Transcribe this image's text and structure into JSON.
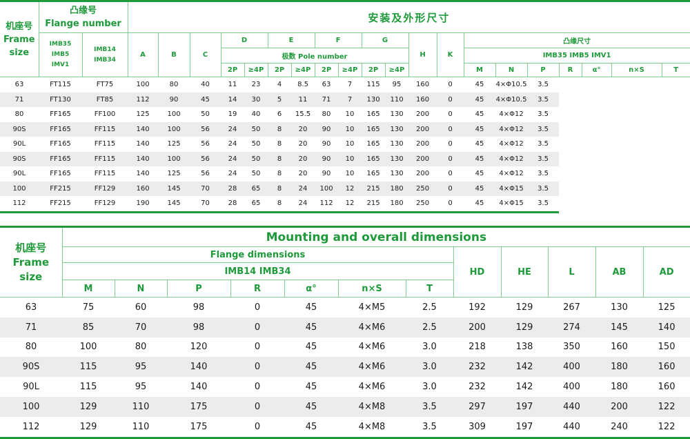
{
  "table1": {
    "frame_size_label": [
      "机座号",
      "Frame",
      "size"
    ],
    "flange_label": [
      "凸缘号",
      "Flange number"
    ],
    "flange_col1": [
      "IMB35",
      "IMB5",
      "IMV1"
    ],
    "flange_col2": [
      "IMB14",
      "IMB34"
    ],
    "title": "安装及外形尺寸",
    "cols_abc": [
      "A",
      "B",
      "C"
    ],
    "d_groups": [
      "D",
      "E",
      "F",
      "G"
    ],
    "pole_label": "极数 Pole number",
    "pole_sub": [
      "2P",
      "≥4P",
      "2P",
      "≥4P",
      "2P",
      "≥4P",
      "2P",
      "≥4P"
    ],
    "cols_hk": [
      "H",
      "K"
    ],
    "flange_dim_label": "凸缘尺寸",
    "flange_dim_sub": "IMB35  IMB5  IMV1",
    "flange_dim_cols": [
      "M",
      "N",
      "P",
      "R",
      "α°",
      "n×S",
      "T"
    ],
    "rows": [
      [
        "63",
        "FT115",
        "FT75",
        "100",
        "80",
        "40",
        "11",
        "23",
        "4",
        "8.5",
        "63",
        "7",
        "115",
        "95",
        "160",
        "0",
        "45",
        "4×Φ10.5",
        "3.5"
      ],
      [
        "71",
        "FT130",
        "FT85",
        "112",
        "90",
        "45",
        "14",
        "30",
        "5",
        "11",
        "71",
        "7",
        "130",
        "110",
        "160",
        "0",
        "45",
        "4×Φ10.5",
        "3.5"
      ],
      [
        "80",
        "FF165",
        "FF100",
        "125",
        "100",
        "50",
        "19",
        "40",
        "6",
        "15.5",
        "80",
        "10",
        "165",
        "130",
        "200",
        "0",
        "45",
        "4×Φ12",
        "3.5"
      ],
      [
        "90S",
        "FF165",
        "FF115",
        "140",
        "100",
        "56",
        "24",
        "50",
        "8",
        "20",
        "90",
        "10",
        "165",
        "130",
        "200",
        "0",
        "45",
        "4×Φ12",
        "3.5"
      ],
      [
        "90L",
        "FF165",
        "FF115",
        "140",
        "125",
        "56",
        "24",
        "50",
        "8",
        "20",
        "90",
        "10",
        "165",
        "130",
        "200",
        "0",
        "45",
        "4×Φ12",
        "3.5"
      ],
      [
        "90S",
        "FF165",
        "FF115",
        "140",
        "100",
        "56",
        "24",
        "50",
        "8",
        "20",
        "90",
        "10",
        "165",
        "130",
        "200",
        "0",
        "45",
        "4×Φ12",
        "3.5"
      ],
      [
        "90L",
        "FF165",
        "FF115",
        "140",
        "125",
        "56",
        "24",
        "50",
        "8",
        "20",
        "90",
        "10",
        "165",
        "130",
        "200",
        "0",
        "45",
        "4×Φ12",
        "3.5"
      ],
      [
        "100",
        "FF215",
        "FF129",
        "160",
        "145",
        "70",
        "28",
        "65",
        "8",
        "24",
        "100",
        "12",
        "215",
        "180",
        "250",
        "0",
        "45",
        "4×Φ15",
        "3.5"
      ],
      [
        "112",
        "FF215",
        "FF129",
        "190",
        "145",
        "70",
        "28",
        "65",
        "8",
        "24",
        "112",
        "12",
        "215",
        "180",
        "250",
        "0",
        "45",
        "4×Φ15",
        "3.5"
      ]
    ]
  },
  "table2": {
    "frame_size_label": [
      "机座号",
      "Frame",
      "size"
    ],
    "title": "Mounting and overall dimensions",
    "flange_dim_label": "Flange dimensions",
    "flange_dim_sub": "IMB14 IMB34",
    "flange_dim_cols": [
      "M",
      "N",
      "P",
      "R",
      "α°",
      "n×S",
      "T"
    ],
    "other_cols": [
      "HD",
      "HE",
      "L",
      "AB",
      "AD"
    ],
    "rows": [
      [
        "63",
        "75",
        "60",
        "98",
        "0",
        "45",
        "4×M5",
        "2.5",
        "192",
        "129",
        "267",
        "130",
        "125"
      ],
      [
        "71",
        "85",
        "70",
        "98",
        "0",
        "45",
        "4×M6",
        "2.5",
        "200",
        "129",
        "274",
        "145",
        "140"
      ],
      [
        "80",
        "100",
        "80",
        "120",
        "0",
        "45",
        "4×M6",
        "3.0",
        "218",
        "138",
        "350",
        "160",
        "150"
      ],
      [
        "90S",
        "115",
        "95",
        "140",
        "0",
        "45",
        "4×M6",
        "3.0",
        "232",
        "142",
        "400",
        "180",
        "160"
      ],
      [
        "90L",
        "115",
        "95",
        "140",
        "0",
        "45",
        "4×M6",
        "3.0",
        "232",
        "142",
        "400",
        "180",
        "160"
      ],
      [
        "100",
        "129",
        "110",
        "175",
        "0",
        "45",
        "4×M8",
        "3.5",
        "297",
        "197",
        "440",
        "200",
        "122"
      ],
      [
        "112",
        "129",
        "110",
        "175",
        "0",
        "45",
        "4×M8",
        "3.5",
        "309",
        "197",
        "440",
        "240",
        "122"
      ]
    ]
  }
}
